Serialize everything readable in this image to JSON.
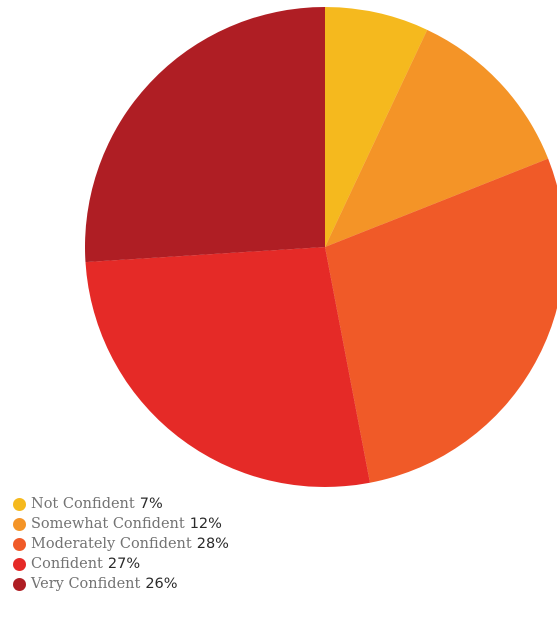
{
  "chart_data": {
    "type": "pie",
    "title": "",
    "start_angle_deg": 0,
    "direction": "clockwise",
    "slices": [
      {
        "label": "Not Confident",
        "value": 7,
        "display": "7%",
        "color": "#F5B91E"
      },
      {
        "label": "Somewhat Confident",
        "value": 12,
        "display": "12%",
        "color": "#F49427"
      },
      {
        "label": "Moderately Confident",
        "value": 28,
        "display": "28%",
        "color": "#F05A28"
      },
      {
        "label": "Confident",
        "value": 27,
        "display": "27%",
        "color": "#E52A27"
      },
      {
        "label": "Very Confident",
        "value": 26,
        "display": "26%",
        "color": "#AF1E24"
      }
    ],
    "legend_position": "bottom-left"
  }
}
